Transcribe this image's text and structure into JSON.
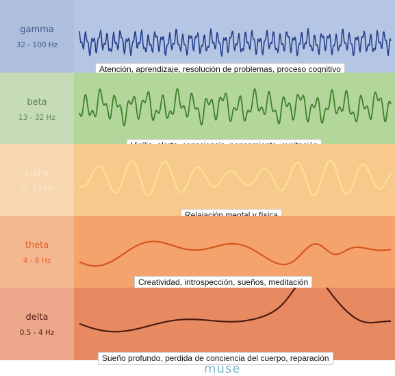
{
  "bands": [
    {
      "name": "gamma",
      "range": "32 - 100 Hz",
      "caption": "Atención, aprendizaje, resolución de problemas, proceso cognitivo",
      "bg": "#b4c6e4",
      "label_bg": "#aebfdd",
      "name_color": "#3e5a8a",
      "wave_color": "#27418b"
    },
    {
      "name": "beta",
      "range": "13 - 32 Hz",
      "caption": "Vigilia, alerta, consciencia, pensamiento, excitación",
      "bg": "#b3d79a",
      "label_bg": "#c6dcb8",
      "name_color": "#5b8a4a",
      "wave_color": "#3e7f2b"
    },
    {
      "name": "alpha",
      "range": "8 - 13 Hz",
      "caption": "Relajación mental y física",
      "bg": "#f8c98d",
      "label_bg": "#f6d7af",
      "name_color": "#fbe9cf",
      "wave_color": "#fae28f"
    },
    {
      "name": "theta",
      "range": "4 - 8 Hz",
      "caption": "Creatividad, introspección, sueños, meditación",
      "bg": "#f4a36c",
      "label_bg": "#f4b890",
      "name_color": "#e25f25",
      "wave_color": "#d5551f"
    },
    {
      "name": "delta",
      "range": "0.5 - 4 Hz",
      "caption": "Sueño profundo, perdida de conciencia del cuerpo, reparación",
      "bg": "#e88a61",
      "label_bg": "#eda78a",
      "name_color": "#5a2416",
      "wave_color": "#4b1a10"
    }
  ],
  "logo": "muse"
}
